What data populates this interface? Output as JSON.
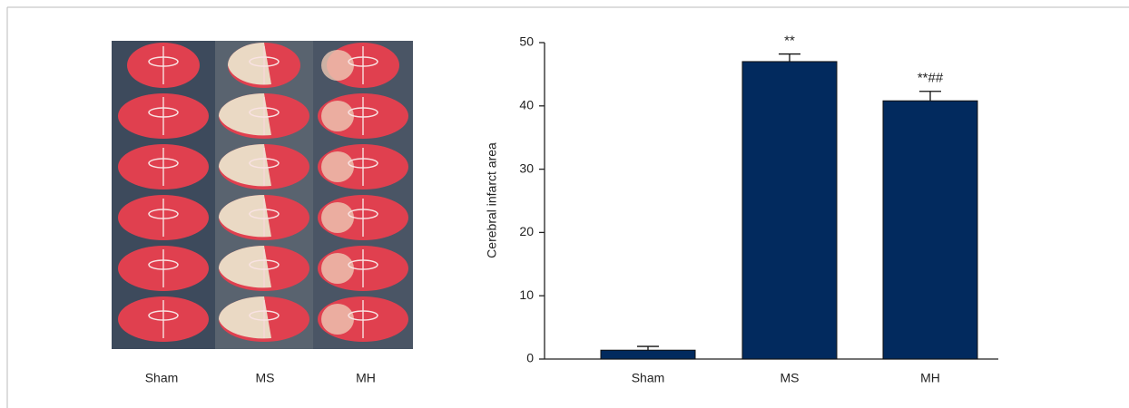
{
  "image_panel": {
    "labels": [
      "Sham",
      "MS",
      "MH"
    ]
  },
  "chart_data": {
    "type": "bar",
    "y_label": "Cerebral infarct area",
    "categories": [
      "Sham",
      "MS",
      "MH"
    ],
    "values": [
      1.4,
      47,
      40.8
    ],
    "errors": [
      0.6,
      1.2,
      1.5
    ],
    "color": "#022a5e",
    "ylim": [
      0,
      50
    ],
    "yticks": [
      0,
      10,
      20,
      30,
      40,
      50
    ],
    "annotations": [
      {
        "text": "**",
        "category": "MS"
      },
      {
        "text": "**##",
        "category": "MH"
      }
    ]
  }
}
